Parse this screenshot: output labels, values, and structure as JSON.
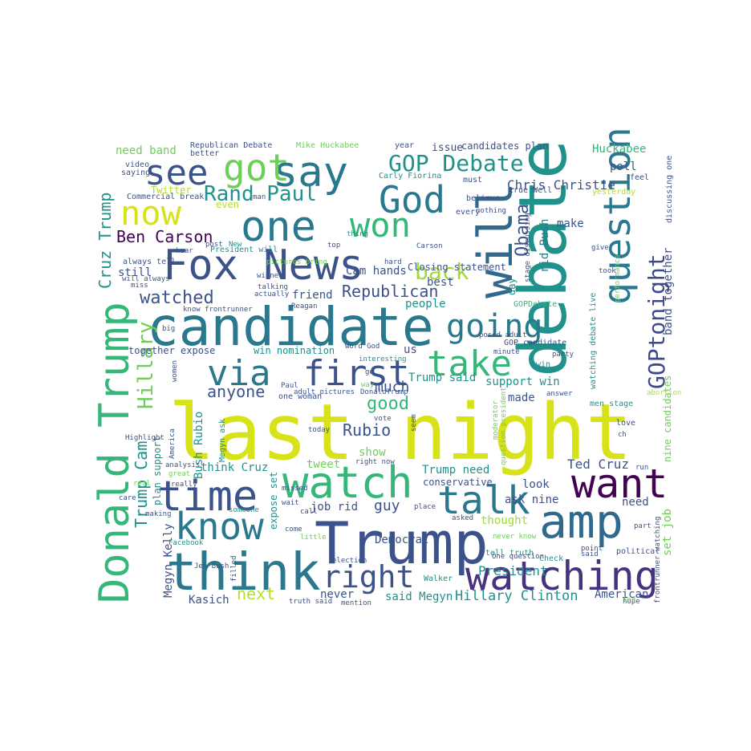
{
  "palette": [
    "#440154",
    "#482878",
    "#3e4a89",
    "#31688e",
    "#26828e",
    "#1f9e89",
    "#35b779",
    "#6dcd59",
    "#b4de2c",
    "#fde725"
  ],
  "words": [
    {
      "text": "last night",
      "color": "#d8e219"
    },
    {
      "text": "debate",
      "color": "#21918c"
    },
    {
      "text": "Trump",
      "color": "#3b528b"
    },
    {
      "text": "candidate",
      "color": "#2a788e"
    },
    {
      "text": "Fox News",
      "color": "#3b528b"
    },
    {
      "text": "think",
      "color": "#2a788e"
    },
    {
      "text": "Donald Trump",
      "color": "#35b779"
    },
    {
      "text": "watching",
      "color": "#46327e"
    },
    {
      "text": "amp",
      "color": "#31688e"
    },
    {
      "text": "will",
      "color": "#31688e"
    },
    {
      "text": "say",
      "color": "#2a788e"
    },
    {
      "text": "God",
      "color": "#2a788e"
    },
    {
      "text": "watch",
      "color": "#35b779"
    },
    {
      "text": "time",
      "color": "#3b528b"
    },
    {
      "text": "one",
      "color": "#2a788e"
    },
    {
      "text": "question",
      "color": "#2a788e"
    },
    {
      "text": "got",
      "color": "#6ece58"
    },
    {
      "text": "know",
      "color": "#2a788e"
    },
    {
      "text": "want",
      "color": "#440154"
    },
    {
      "text": "talk",
      "color": "#2a788e"
    },
    {
      "text": "via",
      "color": "#2a788e"
    },
    {
      "text": "first",
      "color": "#3b528b"
    },
    {
      "text": "take",
      "color": "#35b779"
    },
    {
      "text": "see",
      "color": "#3b528b"
    },
    {
      "text": "now",
      "color": "#d8e219"
    },
    {
      "text": "won",
      "color": "#35b779"
    },
    {
      "text": "right",
      "color": "#3b528b"
    },
    {
      "text": "going",
      "color": "#2a788e"
    },
    {
      "text": "GOPtonight",
      "color": "#3e4989"
    },
    {
      "text": "Hillary",
      "color": "#6ece58"
    },
    {
      "text": "back",
      "color": "#a0da39"
    },
    {
      "text": "GOP Debate",
      "color": "#21918c"
    },
    {
      "text": "Rand Paul",
      "color": "#21918c"
    },
    {
      "text": "Obama",
      "color": "#3b528b"
    },
    {
      "text": "Cruz Trump",
      "color": "#21918c"
    },
    {
      "text": "Trump Cam",
      "color": "#21918c"
    },
    {
      "text": "watched",
      "color": "#3b528b"
    },
    {
      "text": "Republican",
      "color": "#3b528b"
    },
    {
      "text": "Ben Carson",
      "color": "#440154"
    },
    {
      "text": "anyone",
      "color": "#3b528b"
    },
    {
      "text": "good",
      "color": "#35b779"
    },
    {
      "text": "Rubio",
      "color": "#3b528b"
    },
    {
      "text": "Hillary Clinton",
      "color": "#21918c"
    },
    {
      "text": "Megyn Kelly",
      "color": "#3b528b"
    },
    {
      "text": "next",
      "color": "#b5de2b"
    },
    {
      "text": "Chris Christie",
      "color": "#3b528b"
    },
    {
      "text": "Bush Rubio",
      "color": "#21918c"
    },
    {
      "text": "rid Bush",
      "color": "#2a788e"
    },
    {
      "text": "guy",
      "color": "#3b528b"
    },
    {
      "text": "President",
      "color": "#21918c"
    },
    {
      "text": "band together",
      "color": "#3b528b"
    },
    {
      "text": "Cam hands",
      "color": "#3b528b"
    },
    {
      "text": "much",
      "color": "#3b528b"
    },
    {
      "text": "Ted Cruz",
      "color": "#3b528b"
    },
    {
      "text": "Kasich",
      "color": "#3b528b"
    },
    {
      "text": "Trump said",
      "color": "#21918c"
    },
    {
      "text": "Trump need",
      "color": "#21918c"
    },
    {
      "text": "Huckabee",
      "color": "#35b779"
    },
    {
      "text": "need band",
      "color": "#6ece58"
    },
    {
      "text": "poll",
      "color": "#3b528b"
    },
    {
      "text": "make",
      "color": "#3b528b"
    },
    {
      "text": "issue",
      "color": "#3b528b"
    },
    {
      "text": "candidates plan",
      "color": "#3b528b"
    },
    {
      "text": "nine candidates",
      "color": "#6ece58"
    },
    {
      "text": "set job",
      "color": "#6ece58"
    },
    {
      "text": "together expose",
      "color": "#3b528b"
    },
    {
      "text": "win nomination",
      "color": "#21918c"
    },
    {
      "text": "support win",
      "color": "#21918c"
    },
    {
      "text": "think Cruz",
      "color": "#21918c"
    },
    {
      "text": "tweet",
      "color": "#6ece58"
    },
    {
      "text": "job rid",
      "color": "#3b528b"
    },
    {
      "text": "Democrat",
      "color": "#3b528b"
    },
    {
      "text": "thought",
      "color": "#a0da39"
    },
    {
      "text": "look",
      "color": "#3b528b"
    },
    {
      "text": "ask nine",
      "color": "#3b528b"
    },
    {
      "text": "need",
      "color": "#3b528b"
    },
    {
      "text": "American",
      "color": "#3b528b"
    },
    {
      "text": "said Megyn",
      "color": "#21918c"
    },
    {
      "text": "never",
      "color": "#3b528b"
    },
    {
      "text": "made",
      "color": "#3b528b"
    },
    {
      "text": "show",
      "color": "#6ece58"
    },
    {
      "text": "conservative",
      "color": "#3b528b"
    },
    {
      "text": "plan support",
      "color": "#21918c"
    },
    {
      "text": "expose set",
      "color": "#21918c"
    },
    {
      "text": "friend",
      "color": "#3b528b"
    },
    {
      "text": "people",
      "color": "#21918c"
    },
    {
      "text": "us",
      "color": "#3b528b"
    },
    {
      "text": "best",
      "color": "#3b528b"
    },
    {
      "text": "Closing statement",
      "color": "#3b528b"
    },
    {
      "text": "still",
      "color": "#3b528b"
    },
    {
      "text": "Twitter",
      "color": "#b5de2b"
    },
    {
      "text": "even",
      "color": "#b5de2b"
    },
    {
      "text": "day",
      "color": "#21918c"
    },
    {
      "text": "Republican Debate",
      "color": "#3b528b"
    },
    {
      "text": "Mike Huckabee",
      "color": "#6ece58"
    },
    {
      "text": "Commercial break",
      "color": "#3b528b"
    },
    {
      "text": "always tell",
      "color": "#3b528b"
    },
    {
      "text": "President will",
      "color": "#21918c"
    },
    {
      "text": "GOPDebate",
      "color": "#35b779"
    },
    {
      "text": "GOP candidate",
      "color": "#3b528b"
    },
    {
      "text": "watching debate live",
      "color": "#21918c"
    },
    {
      "text": "Carly Fiorina",
      "color": "#21918c"
    },
    {
      "text": "every",
      "color": "#3b528b"
    },
    {
      "text": "better",
      "color": "#3b528b"
    },
    {
      "text": "saying",
      "color": "#3b528b"
    },
    {
      "text": "video",
      "color": "#3b528b"
    },
    {
      "text": "believe",
      "color": "#3b528b"
    },
    {
      "text": "yesterday",
      "color": "#b5de2b"
    },
    {
      "text": "true Well",
      "color": "#3b528b"
    },
    {
      "text": "year",
      "color": "#3b528b"
    },
    {
      "text": "must",
      "color": "#3b528b"
    },
    {
      "text": "feel",
      "color": "#3b528b"
    },
    {
      "text": "discussing one",
      "color": "#3b528b"
    },
    {
      "text": "Highlight",
      "color": "#3b528b"
    },
    {
      "text": "analysis",
      "color": "#3b528b"
    },
    {
      "text": "great",
      "color": "#6ece58"
    },
    {
      "text": "real",
      "color": "#6ece58"
    },
    {
      "text": "care",
      "color": "#3b528b"
    },
    {
      "text": "making",
      "color": "#3b528b"
    },
    {
      "text": "Facebook",
      "color": "#21918c"
    },
    {
      "text": "Jeb Bush",
      "color": "#3b528b"
    },
    {
      "text": "truth said",
      "color": "#3b528b"
    },
    {
      "text": "mention",
      "color": "#3b528b"
    },
    {
      "text": "Walker",
      "color": "#21918c"
    },
    {
      "text": "tell truth",
      "color": "#21918c"
    },
    {
      "text": "point",
      "color": "#3b528b"
    },
    {
      "text": "Check",
      "color": "#21918c"
    },
    {
      "text": "political",
      "color": "#3b528b"
    },
    {
      "text": "hope",
      "color": "#3b528b"
    },
    {
      "text": "One question",
      "color": "#3b528b"
    },
    {
      "text": "frontrunner watching",
      "color": "#3b528b"
    },
    {
      "text": "moderator",
      "color": "#6ece58"
    },
    {
      "text": "question president",
      "color": "#6ece58"
    },
    {
      "text": "answer",
      "color": "#3b528b"
    },
    {
      "text": "abortion",
      "color": "#b5de2b"
    },
    {
      "text": "men stage",
      "color": "#21918c"
    },
    {
      "text": "love",
      "color": "#3b528b"
    },
    {
      "text": "win",
      "color": "#21918c"
    },
    {
      "text": "party",
      "color": "#3b528b"
    },
    {
      "text": "minute",
      "color": "#3b528b"
    },
    {
      "text": "interesting",
      "color": "#21918c"
    },
    {
      "text": "posed adult",
      "color": "#3b528b"
    },
    {
      "text": "Reagan",
      "color": "#3b528b"
    },
    {
      "text": "actually",
      "color": "#3b528b"
    },
    {
      "text": "talking",
      "color": "#3b528b"
    },
    {
      "text": "winner",
      "color": "#3b528b"
    },
    {
      "text": "know frontrunner",
      "color": "#3b528b"
    },
    {
      "text": "miss",
      "color": "#3b528b"
    },
    {
      "text": "will always",
      "color": "#3b528b"
    },
    {
      "text": "hear",
      "color": "#3b528b"
    },
    {
      "text": "post",
      "color": "#3b528b"
    },
    {
      "text": "New",
      "color": "#21918c"
    },
    {
      "text": "pictures bring",
      "color": "#6ece58"
    },
    {
      "text": "man",
      "color": "#3b528b"
    },
    {
      "text": "top",
      "color": "#3b528b"
    },
    {
      "text": "thing",
      "color": "#21918c"
    },
    {
      "text": "Carson",
      "color": "#3b528b"
    },
    {
      "text": "hard",
      "color": "#3b528b"
    },
    {
      "text": "give",
      "color": "#3b528b"
    },
    {
      "text": "took",
      "color": "#3b528b"
    },
    {
      "text": "performance",
      "color": "#6ece58"
    },
    {
      "text": "DonaldTrump",
      "color": "#3b528b"
    },
    {
      "text": "one woman",
      "color": "#3b528b"
    },
    {
      "text": "adult pictures",
      "color": "#3b528b"
    },
    {
      "text": "Paul",
      "color": "#3b528b"
    },
    {
      "text": "vote",
      "color": "#3b528b"
    },
    {
      "text": "seem",
      "color": "#3b528b"
    },
    {
      "text": "today",
      "color": "#3b528b"
    },
    {
      "text": "Megyn ask",
      "color": "#21918c"
    },
    {
      "text": "right now",
      "color": "#3b528b"
    },
    {
      "text": "wait",
      "color": "#3b528b"
    },
    {
      "text": "come",
      "color": "#3b528b"
    },
    {
      "text": "little",
      "color": "#6ece58"
    },
    {
      "text": "missed",
      "color": "#3b528b"
    },
    {
      "text": "election",
      "color": "#3b528b"
    },
    {
      "text": "asked",
      "color": "#3b528b"
    },
    {
      "text": "place",
      "color": "#3b528b"
    },
    {
      "text": "never know",
      "color": "#6ece58"
    },
    {
      "text": "someone",
      "color": "#21918c"
    },
    {
      "text": "really",
      "color": "#3b528b"
    },
    {
      "text": "America",
      "color": "#3b528b"
    },
    {
      "text": "women",
      "color": "#3b528b"
    },
    {
      "text": "big",
      "color": "#3b528b"
    },
    {
      "text": "part",
      "color": "#3b528b"
    },
    {
      "text": "ch",
      "color": "#3b528b"
    },
    {
      "text": "run",
      "color": "#3b528b"
    },
    {
      "text": "fed",
      "color": "#6ece58"
    },
    {
      "text": "call",
      "color": "#3b528b"
    },
    {
      "text": "go",
      "color": "#3b528b"
    },
    {
      "text": "way",
      "color": "#6ece58"
    },
    {
      "text": "nothing",
      "color": "#3b528b"
    },
    {
      "text": "stage discussing",
      "color": "#3b528b"
    },
    {
      "text": "word God",
      "color": "#3b528b"
    },
    {
      "text": "said",
      "color": "#3b528b"
    },
    {
      "text": "filled",
      "color": "#3b528b"
    }
  ]
}
